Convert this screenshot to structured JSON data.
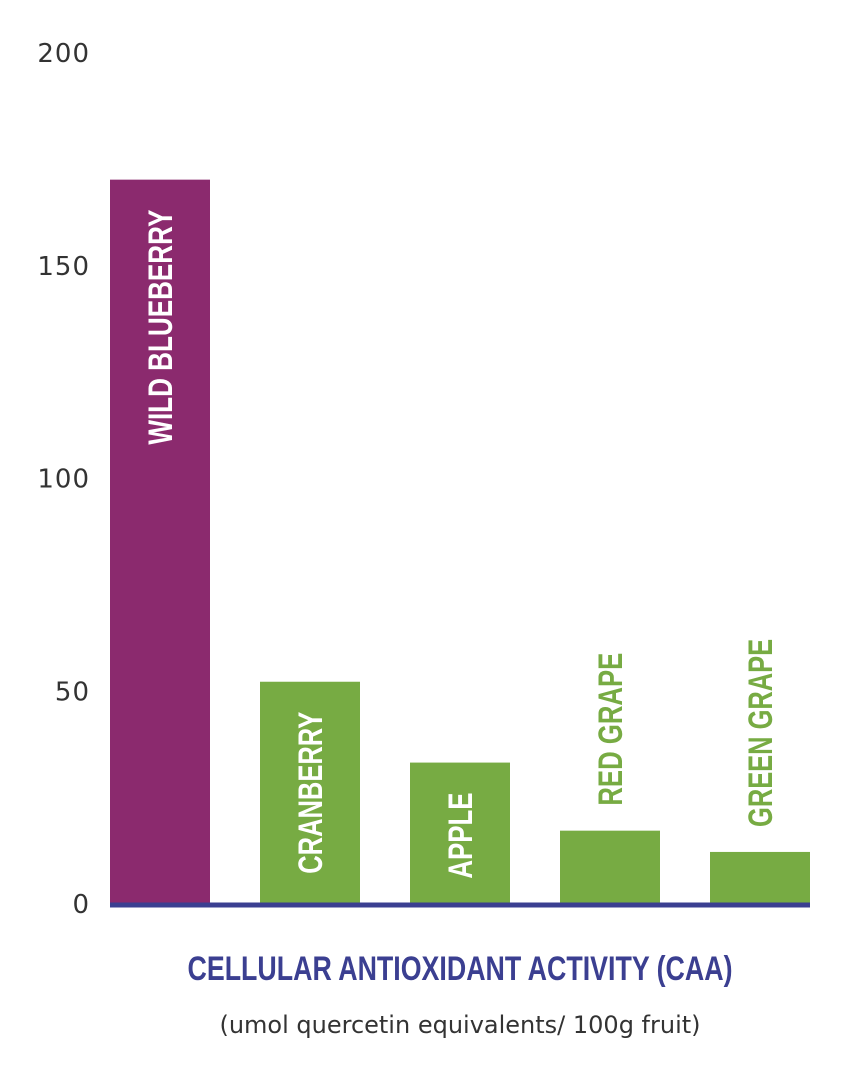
{
  "chart_data": {
    "type": "bar",
    "categories": [
      "WILD BLUEBERRY",
      "CRANBERRY",
      "APPLE",
      "RED GRAPE",
      "GREEN GRAPE"
    ],
    "values": [
      170,
      52,
      33,
      17,
      12
    ],
    "bar_colors": [
      "#8b2a6e",
      "#77ab43",
      "#77ab43",
      "#77ab43",
      "#77ab43"
    ],
    "label_colors": [
      "#ffffff",
      "#ffffff",
      "#ffffff",
      "#77ab43",
      "#77ab43"
    ],
    "label_inside": [
      true,
      true,
      true,
      false,
      false
    ],
    "xlabel": "CELLULAR ANTIOXIDANT ACTIVITY (CAA)",
    "xlabel_sub": "(umol quercetin equivalents/ 100g fruit)",
    "ylabel": "",
    "ylim": [
      0,
      200
    ],
    "yticks": [
      0,
      50,
      100,
      150,
      200
    ],
    "axis_color": "#3b3f91",
    "grid": false,
    "legend": "none"
  }
}
